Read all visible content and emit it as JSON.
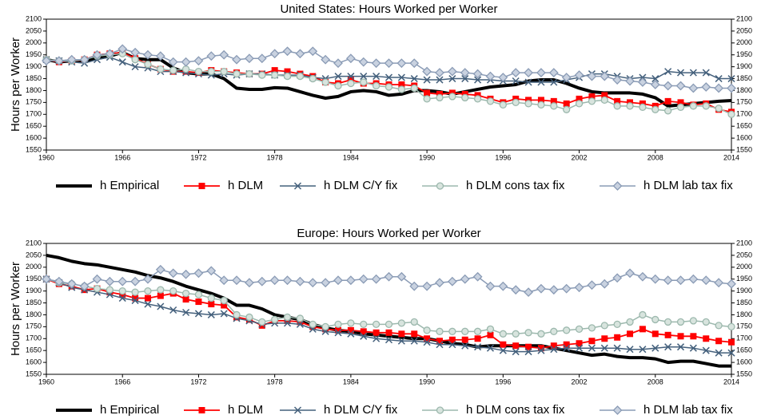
{
  "chart_data": [
    {
      "type": "line",
      "title": "United States: Hours Worked per Worker",
      "y_label": "Hours per Worker",
      "x": [
        1960,
        1961,
        1962,
        1963,
        1964,
        1965,
        1966,
        1967,
        1968,
        1969,
        1970,
        1971,
        1972,
        1973,
        1974,
        1975,
        1976,
        1977,
        1978,
        1979,
        1980,
        1981,
        1982,
        1983,
        1984,
        1985,
        1986,
        1987,
        1988,
        1989,
        1990,
        1991,
        1992,
        1993,
        1994,
        1995,
        1996,
        1997,
        1998,
        1999,
        2000,
        2001,
        2002,
        2003,
        2004,
        2005,
        2006,
        2007,
        2008,
        2009,
        2010,
        2011,
        2012,
        2013,
        2014
      ],
      "xlim": [
        1960,
        2014
      ],
      "xticks": [
        1960,
        1966,
        1972,
        1978,
        1984,
        1990,
        1996,
        2002,
        2008,
        2014
      ],
      "ylim": [
        1550,
        2100
      ],
      "yticks": [
        1550,
        1600,
        1650,
        1700,
        1750,
        1800,
        1850,
        1900,
        1950,
        2000,
        2050,
        2100
      ],
      "series": [
        {
          "name": "h Empirical",
          "color": "#000000",
          "marker": "none",
          "line_width": 4,
          "values": [
            1930,
            1920,
            1925,
            1925,
            1935,
            1945,
            1960,
            1935,
            1930,
            1930,
            1895,
            1875,
            1870,
            1870,
            1850,
            1810,
            1805,
            1805,
            1812,
            1810,
            1795,
            1780,
            1768,
            1775,
            1795,
            1800,
            1795,
            1780,
            1785,
            1800,
            1800,
            1795,
            1785,
            1795,
            1805,
            1815,
            1820,
            1825,
            1840,
            1845,
            1845,
            1830,
            1810,
            1795,
            1790,
            1790,
            1790,
            1785,
            1770,
            1735,
            1740,
            1745,
            1750,
            1755,
            1758
          ]
        },
        {
          "name": "h DLM",
          "color": "#ff0000",
          "marker": "square",
          "line_width": 1.8,
          "values": [
            1930,
            1920,
            1925,
            1930,
            1950,
            1955,
            1960,
            1935,
            1910,
            1890,
            1880,
            1880,
            1875,
            1885,
            1880,
            1875,
            1870,
            1870,
            1885,
            1880,
            1870,
            1860,
            1835,
            1830,
            1845,
            1830,
            1830,
            1825,
            1825,
            1820,
            1790,
            1785,
            1790,
            1785,
            1780,
            1765,
            1750,
            1765,
            1760,
            1760,
            1755,
            1745,
            1765,
            1775,
            1780,
            1755,
            1750,
            1745,
            1735,
            1755,
            1750,
            1740,
            1745,
            1720,
            1710
          ]
        },
        {
          "name": "h DLM C/Y fix",
          "color": "#44607c",
          "marker": "cross",
          "line_width": 1.5,
          "values": [
            1930,
            1925,
            1920,
            1915,
            1930,
            1940,
            1920,
            1900,
            1895,
            1880,
            1880,
            1875,
            1870,
            1865,
            1870,
            1865,
            1870,
            1870,
            1865,
            1865,
            1865,
            1855,
            1850,
            1860,
            1860,
            1860,
            1860,
            1855,
            1855,
            1850,
            1845,
            1845,
            1850,
            1850,
            1845,
            1845,
            1840,
            1840,
            1835,
            1835,
            1835,
            1845,
            1855,
            1870,
            1870,
            1860,
            1850,
            1855,
            1850,
            1880,
            1875,
            1875,
            1875,
            1850,
            1850
          ]
        },
        {
          "name": "h DLM cons tax fix",
          "color": "#9cb8ad",
          "marker": "circle",
          "line_width": 1.5,
          "values": [
            1930,
            1925,
            1925,
            1930,
            1945,
            1950,
            1955,
            1930,
            1910,
            1890,
            1885,
            1890,
            1880,
            1880,
            1880,
            1870,
            1870,
            1865,
            1865,
            1860,
            1860,
            1850,
            1835,
            1820,
            1830,
            1835,
            1820,
            1815,
            1805,
            1810,
            1765,
            1770,
            1775,
            1770,
            1765,
            1755,
            1740,
            1750,
            1745,
            1740,
            1735,
            1720,
            1745,
            1755,
            1760,
            1735,
            1735,
            1730,
            1720,
            1715,
            1730,
            1735,
            1735,
            1725,
            1700
          ]
        },
        {
          "name": "h DLM lab tax fix",
          "color": "#8a9bb5",
          "marker": "diamond",
          "line_width": 1.5,
          "values": [
            1925,
            1925,
            1930,
            1930,
            1950,
            1955,
            1975,
            1960,
            1950,
            1945,
            1920,
            1920,
            1925,
            1945,
            1950,
            1930,
            1935,
            1935,
            1955,
            1965,
            1955,
            1965,
            1930,
            1915,
            1935,
            1920,
            1915,
            1915,
            1915,
            1915,
            1880,
            1875,
            1880,
            1875,
            1870,
            1860,
            1855,
            1875,
            1875,
            1875,
            1875,
            1855,
            1865,
            1860,
            1860,
            1845,
            1840,
            1835,
            1825,
            1820,
            1820,
            1810,
            1815,
            1810,
            1810
          ]
        }
      ]
    },
    {
      "type": "line",
      "title": "Europe: Hours Worked per Worker",
      "y_label": "Hours per Worker",
      "x": [
        1960,
        1961,
        1962,
        1963,
        1964,
        1965,
        1966,
        1967,
        1968,
        1969,
        1970,
        1971,
        1972,
        1973,
        1974,
        1975,
        1976,
        1977,
        1978,
        1979,
        1980,
        1981,
        1982,
        1983,
        1984,
        1985,
        1986,
        1987,
        1988,
        1989,
        1990,
        1991,
        1992,
        1993,
        1994,
        1995,
        1996,
        1997,
        1998,
        1999,
        2000,
        2001,
        2002,
        2003,
        2004,
        2005,
        2006,
        2007,
        2008,
        2009,
        2010,
        2011,
        2012,
        2013,
        2014
      ],
      "xlim": [
        1960,
        2014
      ],
      "xticks": [
        1960,
        1966,
        1972,
        1978,
        1984,
        1990,
        1996,
        2002,
        2008,
        2014
      ],
      "ylim": [
        1550,
        2100
      ],
      "yticks": [
        1550,
        1600,
        1650,
        1700,
        1750,
        1800,
        1850,
        1900,
        1950,
        2000,
        2050,
        2100
      ],
      "series": [
        {
          "name": "h Empirical",
          "color": "#000000",
          "marker": "none",
          "line_width": 4,
          "values": [
            2050,
            2040,
            2025,
            2015,
            2010,
            2000,
            1990,
            1980,
            1965,
            1955,
            1940,
            1920,
            1905,
            1890,
            1870,
            1840,
            1840,
            1825,
            1800,
            1790,
            1780,
            1760,
            1745,
            1735,
            1730,
            1720,
            1715,
            1710,
            1705,
            1700,
            1700,
            1690,
            1680,
            1675,
            1665,
            1670,
            1670,
            1670,
            1670,
            1670,
            1660,
            1650,
            1640,
            1630,
            1635,
            1625,
            1620,
            1620,
            1615,
            1600,
            1605,
            1605,
            1595,
            1585,
            1585
          ]
        },
        {
          "name": "h DLM",
          "color": "#ff0000",
          "marker": "square",
          "line_width": 1.8,
          "values": [
            1950,
            1930,
            1920,
            1905,
            1910,
            1895,
            1885,
            1870,
            1870,
            1880,
            1890,
            1865,
            1855,
            1845,
            1840,
            1790,
            1780,
            1755,
            1775,
            1775,
            1770,
            1750,
            1740,
            1735,
            1735,
            1730,
            1725,
            1725,
            1720,
            1720,
            1700,
            1690,
            1695,
            1695,
            1700,
            1715,
            1675,
            1670,
            1665,
            1660,
            1670,
            1675,
            1680,
            1690,
            1700,
            1705,
            1720,
            1740,
            1720,
            1715,
            1710,
            1710,
            1700,
            1690,
            1685
          ]
        },
        {
          "name": "h DLM C/Y fix",
          "color": "#44607c",
          "marker": "cross",
          "line_width": 1.5,
          "values": [
            1950,
            1935,
            1915,
            1905,
            1895,
            1885,
            1870,
            1860,
            1845,
            1835,
            1820,
            1810,
            1805,
            1800,
            1805,
            1785,
            1775,
            1760,
            1765,
            1765,
            1760,
            1740,
            1730,
            1725,
            1720,
            1710,
            1700,
            1695,
            1690,
            1690,
            1685,
            1675,
            1675,
            1670,
            1665,
            1660,
            1650,
            1645,
            1645,
            1650,
            1655,
            1660,
            1660,
            1660,
            1660,
            1660,
            1655,
            1655,
            1660,
            1665,
            1665,
            1660,
            1650,
            1640,
            1640
          ]
        },
        {
          "name": "h DLM cons tax fix",
          "color": "#9cb8ad",
          "marker": "circle",
          "line_width": 1.5,
          "values": [
            1950,
            1935,
            1930,
            1920,
            1910,
            1905,
            1900,
            1895,
            1900,
            1905,
            1900,
            1890,
            1885,
            1870,
            1860,
            1800,
            1790,
            1770,
            1780,
            1790,
            1785,
            1760,
            1750,
            1760,
            1765,
            1760,
            1760,
            1760,
            1765,
            1770,
            1735,
            1730,
            1730,
            1730,
            1730,
            1740,
            1720,
            1720,
            1725,
            1720,
            1730,
            1735,
            1740,
            1745,
            1755,
            1760,
            1770,
            1800,
            1780,
            1770,
            1770,
            1775,
            1770,
            1755,
            1750
          ]
        },
        {
          "name": "h DLM lab tax fix",
          "color": "#8a9bb5",
          "marker": "diamond",
          "line_width": 1.5,
          "values": [
            1950,
            1940,
            1930,
            1920,
            1950,
            1940,
            1940,
            1940,
            1950,
            1990,
            1975,
            1970,
            1975,
            1985,
            1945,
            1945,
            1935,
            1940,
            1945,
            1945,
            1940,
            1935,
            1935,
            1945,
            1945,
            1950,
            1950,
            1960,
            1960,
            1920,
            1920,
            1935,
            1940,
            1950,
            1960,
            1920,
            1920,
            1905,
            1895,
            1910,
            1905,
            1910,
            1915,
            1925,
            1930,
            1955,
            1975,
            1960,
            1950,
            1945,
            1945,
            1950,
            1945,
            1935,
            1930
          ]
        }
      ]
    }
  ]
}
